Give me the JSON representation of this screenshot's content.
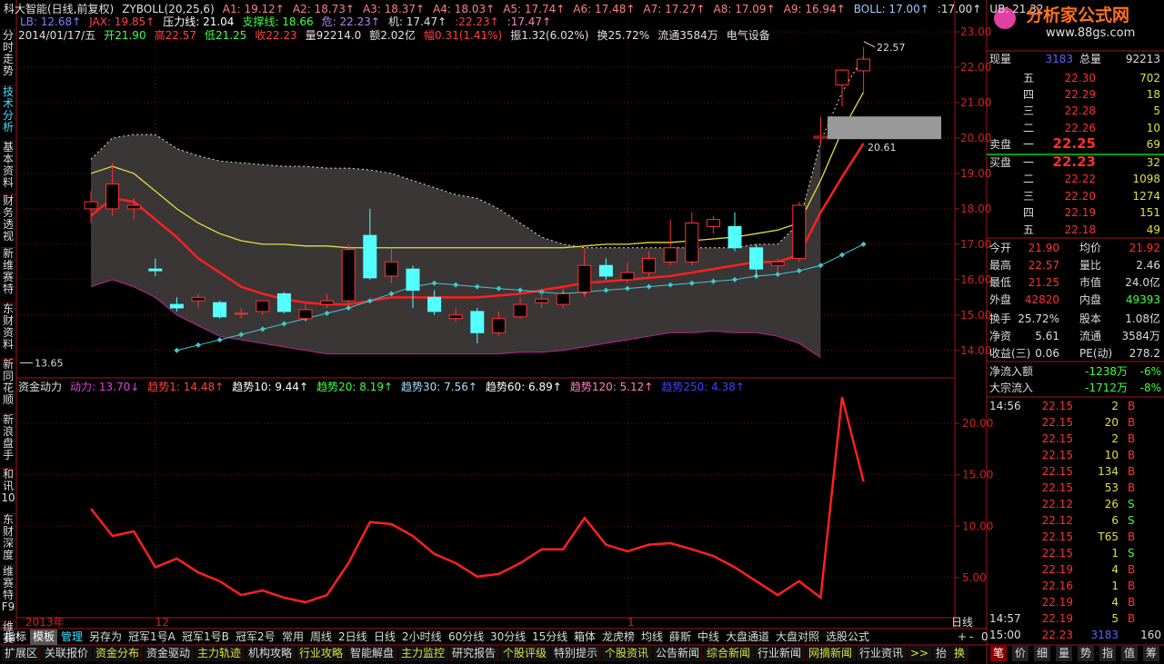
{
  "sidebar": {
    "tabs": [
      "分时走势",
      "技术分析",
      "基本资料",
      "财务透视",
      "新维赛特",
      "东财资料",
      "新同花顺",
      "新浪盘手",
      "和讯10",
      "东财深度",
      "维赛特F9",
      "维赛"
    ],
    "active": 1
  },
  "header": {
    "line1": [
      {
        "text": "科大智能(日线,前复权)",
        "color": "#e0e0e0"
      },
      {
        "text": "ZYBOLL(20,25,6)",
        "color": "#e0e0e0"
      },
      {
        "text": "A1: 19.12↑",
        "color": "#ff8080"
      },
      {
        "text": "A2: 18.73↑",
        "color": "#ff8080"
      },
      {
        "text": "A3: 18.37↑",
        "color": "#ff8080"
      },
      {
        "text": "A4: 18.03↑",
        "color": "#ff8080"
      },
      {
        "text": "A5: 17.74↑",
        "color": "#ff8080"
      },
      {
        "text": "A6: 17.48↑",
        "color": "#ff8080"
      },
      {
        "text": "A7: 17.27↑",
        "color": "#ff8080"
      },
      {
        "text": "A8: 17.09↑",
        "color": "#ff8080"
      },
      {
        "text": "A9: 16.94↑",
        "color": "#ff8080"
      },
      {
        "text": "BOLL: 17.00↑",
        "color": "#a0c8ff"
      },
      {
        "text": ":17.00↑",
        "color": "#e0e0e0"
      },
      {
        "text": "UB: 21.32",
        "color": "#e0e0e0"
      }
    ],
    "line2": [
      {
        "text": "LB: 12.68↑",
        "color": "#8080ff"
      },
      {
        "text": "JAX: 19.85↑",
        "color": "#ff4040"
      },
      {
        "text": "压力线: 21.04",
        "color": "#ffffff"
      },
      {
        "text": "支撑线: 18.66",
        "color": "#40ff40"
      },
      {
        "text": "危: 22.23↑",
        "color": "#c080ff"
      },
      {
        "text": "机: 17.47↑",
        "color": "#e0e0e0"
      },
      {
        "text": ":22.23↑",
        "color": "#ff4040"
      },
      {
        "text": ":17.47↑",
        "color": "#ff80c0"
      }
    ],
    "line3": [
      {
        "text": "2014/01/17/五",
        "color": "#e0e0e0"
      },
      {
        "text": "开21.90",
        "color": "#40ff40"
      },
      {
        "text": "高22.57",
        "color": "#ff4040"
      },
      {
        "text": "低21.25",
        "color": "#40ff40"
      },
      {
        "text": "收22.23",
        "color": "#ff4040"
      },
      {
        "text": "量92214.0",
        "color": "#e0e0e0"
      },
      {
        "text": "额2.02亿",
        "color": "#e0e0e0"
      },
      {
        "text": "幅0.31(1.41%)",
        "color": "#ff4040"
      },
      {
        "text": "振1.32(6.02%)",
        "color": "#e0e0e0"
      },
      {
        "text": "换25.72%",
        "color": "#e0e0e0"
      },
      {
        "text": "流通3584万",
        "color": "#e0e0e0"
      },
      {
        "text": "电气设备",
        "color": "#e0e0e0"
      }
    ]
  },
  "chart_data": [
    {
      "type": "candlestick",
      "ylim": [
        13.25,
        23.9
      ],
      "yticks": [
        {
          "value": 14,
          "label": "14.00"
        },
        {
          "value": 15,
          "label": "15.00"
        },
        {
          "value": 16,
          "label": "16.00"
        },
        {
          "value": 17,
          "label": "17.00"
        },
        {
          "value": 18,
          "label": "18.00"
        },
        {
          "value": 19,
          "label": "19.00"
        },
        {
          "value": 20,
          "label": "20.00"
        },
        {
          "value": 21,
          "label": "21.00"
        },
        {
          "value": 22,
          "label": "22.00"
        },
        {
          "value": 23,
          "label": "23.00"
        }
      ],
      "categories": [
        null,
        null,
        null,
        "12",
        null,
        null,
        null,
        null,
        null,
        null,
        null,
        null,
        null,
        null,
        null,
        null,
        null,
        null,
        null,
        null,
        null,
        null,
        null,
        null,
        null,
        "1",
        null,
        null,
        null,
        null,
        null,
        null,
        null,
        null,
        null,
        null,
        null
      ],
      "year_label": "2013年",
      "open": [
        18.0,
        18.0,
        18.0,
        16.3,
        15.3,
        15.4,
        15.35,
        15.05,
        15.1,
        15.6,
        14.9,
        15.3,
        15.4,
        17.25,
        16.1,
        16.3,
        15.5,
        14.9,
        15.1,
        14.5,
        14.95,
        15.35,
        15.3,
        15.65,
        16.4,
        16.0,
        16.2,
        16.5,
        16.5,
        17.5,
        17.5,
        16.9,
        16.4,
        16.6,
        20.0,
        21.5,
        21.9
      ],
      "high": [
        18.5,
        19.3,
        18.3,
        16.6,
        15.5,
        15.6,
        15.4,
        15.2,
        15.4,
        15.65,
        15.3,
        15.6,
        17.0,
        18.0,
        16.9,
        16.4,
        15.7,
        15.2,
        15.2,
        15.1,
        15.5,
        15.7,
        15.8,
        16.9,
        16.6,
        16.5,
        16.8,
        17.7,
        17.9,
        17.8,
        17.9,
        17.0,
        16.6,
        18.2,
        20.6,
        21.95,
        22.57
      ],
      "low": [
        17.6,
        17.8,
        17.7,
        16.1,
        15.1,
        15.2,
        14.9,
        14.9,
        15.0,
        15.05,
        14.85,
        15.2,
        15.3,
        16.0,
        15.9,
        15.2,
        15.0,
        14.8,
        14.2,
        14.4,
        14.9,
        15.2,
        15.2,
        15.5,
        16.0,
        15.9,
        16.1,
        16.4,
        16.4,
        17.3,
        16.8,
        16.1,
        16.2,
        16.5,
        19.8,
        20.9,
        21.25
      ],
      "close": [
        18.2,
        18.7,
        18.1,
        16.25,
        15.2,
        15.5,
        14.95,
        15.05,
        15.4,
        15.1,
        15.15,
        15.4,
        16.85,
        16.05,
        16.5,
        15.7,
        15.1,
        15.0,
        14.5,
        14.9,
        15.3,
        15.45,
        15.6,
        16.4,
        16.1,
        16.2,
        16.6,
        16.9,
        17.6,
        17.7,
        16.9,
        16.3,
        16.5,
        18.1,
        20.05,
        21.92,
        22.23
      ],
      "up_color": "#ff3232",
      "down_color": "#54ffff",
      "band": {
        "color": "#3a3636",
        "upper": [
          19.4,
          20.0,
          20.1,
          20.1,
          19.7,
          19.5,
          19.35,
          19.3,
          19.25,
          19.2,
          19.2,
          19.15,
          19.15,
          19.1,
          19.0,
          18.8,
          18.6,
          18.4,
          18.3,
          18.0,
          17.6,
          17.2,
          17.0,
          16.9,
          16.9,
          16.9,
          16.9,
          16.9,
          16.9,
          16.9,
          16.9,
          17.0,
          17.0,
          17.6,
          19.9,
          21.3,
          22.3
        ],
        "lower": [
          15.8,
          16.0,
          15.8,
          15.5,
          15.0,
          14.7,
          14.4,
          14.3,
          14.2,
          14.1,
          14.0,
          13.9,
          13.9,
          13.9,
          13.9,
          13.9,
          13.9,
          13.9,
          13.9,
          13.9,
          13.95,
          13.95,
          14.0,
          14.1,
          14.2,
          14.3,
          14.4,
          14.5,
          14.5,
          14.55,
          14.5,
          14.5,
          14.4,
          14.2,
          13.8,
          null,
          null
        ]
      },
      "series": [
        {
          "color": "#e0e040",
          "width": 1.3,
          "values": [
            19.0,
            19.2,
            19.0,
            18.5,
            18.0,
            17.6,
            17.3,
            17.1,
            17.0,
            17.0,
            16.95,
            16.95,
            16.9,
            16.9,
            16.9,
            16.9,
            16.9,
            16.9,
            16.9,
            16.9,
            16.9,
            16.9,
            16.9,
            16.95,
            17.0,
            17.0,
            17.05,
            17.05,
            17.1,
            17.15,
            17.2,
            17.3,
            17.4,
            17.6,
            18.8,
            20.2,
            21.3
          ]
        },
        {
          "color": "#ff2020",
          "width": 2.5,
          "values": [
            17.8,
            18.3,
            18.2,
            17.7,
            17.2,
            16.6,
            16.2,
            15.8,
            15.6,
            15.45,
            15.35,
            15.3,
            15.3,
            15.4,
            15.5,
            15.5,
            15.5,
            15.5,
            15.5,
            15.55,
            15.6,
            15.7,
            15.8,
            15.9,
            15.95,
            16.0,
            16.05,
            16.1,
            16.2,
            16.3,
            16.4,
            16.5,
            16.5,
            16.7,
            17.9,
            18.9,
            19.85
          ]
        },
        {
          "color": "#40c8d0",
          "width": 1,
          "marker": "diamond",
          "values": [
            null,
            null,
            null,
            null,
            14.0,
            14.15,
            14.3,
            14.45,
            14.6,
            14.75,
            14.9,
            15.05,
            15.2,
            15.4,
            15.6,
            15.8,
            15.9,
            15.85,
            15.8,
            15.75,
            15.7,
            15.65,
            15.6,
            15.65,
            15.7,
            15.75,
            15.8,
            15.85,
            15.9,
            15.95,
            16.0,
            16.1,
            16.15,
            16.25,
            16.4,
            16.7,
            17.0
          ]
        }
      ],
      "low_mark": 13.65,
      "high_mark": 22.57,
      "box_mark": 20.61
    },
    {
      "type": "line",
      "legend": [
        {
          "text": "资金动力",
          "color": "#e0e0e0"
        },
        {
          "text": "动力: 13.70↓",
          "color": "#e040e0"
        },
        {
          "text": "趋势1: 14.48↑",
          "color": "#ff4040"
        },
        {
          "text": "趋势10: 9.44↑",
          "color": "#ffffff"
        },
        {
          "text": "趋势20: 8.19↑",
          "color": "#40ff40"
        },
        {
          "text": "趋势30: 7.56↑",
          "color": "#a0e0ff"
        },
        {
          "text": "趋势60: 6.89↑",
          "color": "#ffffff"
        },
        {
          "text": "趋势120: 5.12↑",
          "color": "#ff80c0"
        },
        {
          "text": "趋势250: 4.38↑",
          "color": "#4040ff"
        }
      ],
      "ylim": [
        1.1,
        24.25
      ],
      "yticks": [
        {
          "value": 5,
          "label": "5.00"
        },
        {
          "value": 10,
          "label": "10.00"
        },
        {
          "value": 15,
          "label": "15.00"
        },
        {
          "value": 20,
          "label": "20.00"
        }
      ],
      "series": [
        {
          "color": "#ff2020",
          "values": [
            11.7,
            9.05,
            9.5,
            6.0,
            6.85,
            5.5,
            4.65,
            3.3,
            3.75,
            3.05,
            2.6,
            3.3,
            6.4,
            10.4,
            10.2,
            9.05,
            7.3,
            6.4,
            5.1,
            5.35,
            6.4,
            7.75,
            7.75,
            10.8,
            8.2,
            7.55,
            8.2,
            8.35,
            7.75,
            7.1,
            6.0,
            4.65,
            3.3,
            4.65,
            3.05,
            22.55,
            14.35
          ]
        }
      ],
      "x_period": "日线"
    }
  ],
  "quote": {
    "top": [
      "现量",
      "3183",
      "总量",
      "92213"
    ],
    "sell_label": "卖盘",
    "buy_label": "买盘",
    "sell": [
      [
        "五",
        "22.30",
        "702"
      ],
      [
        "四",
        "22.29",
        "18"
      ],
      [
        "三",
        "22.28",
        "5"
      ],
      [
        "二",
        "22.26",
        "10"
      ],
      [
        "一",
        "22.25",
        "69"
      ]
    ],
    "buy": [
      [
        "一",
        "22.23",
        "32"
      ],
      [
        "二",
        "22.22",
        "1098"
      ],
      [
        "三",
        "22.20",
        "1274"
      ],
      [
        "四",
        "22.19",
        "151"
      ],
      [
        "五",
        "22.18",
        "49"
      ]
    ],
    "stats": [
      [
        "今开",
        "21.90",
        "均价",
        "21.92"
      ],
      [
        "最高",
        "22.57",
        "量比",
        "2.46"
      ],
      [
        "最低",
        "21.25",
        "市值",
        "24.0亿"
      ],
      [
        "外盘",
        "42820",
        "内盘",
        "49393"
      ],
      [
        "换手",
        "25.72%",
        "股本",
        "1.08亿"
      ],
      [
        "净资",
        "5.61",
        "流通",
        "3584万"
      ],
      [
        "收益(三)",
        "0.06",
        "PE(动)",
        "278.2"
      ]
    ],
    "flow": [
      [
        "净流入额",
        "-1238万",
        "-6%"
      ],
      [
        "大宗流入",
        "-1712万",
        "-8%"
      ]
    ],
    "trades": [
      [
        "14:56",
        "22.15",
        "2",
        "B"
      ],
      [
        "",
        "22.15",
        "20",
        "B"
      ],
      [
        "",
        "22.15",
        "2",
        "B"
      ],
      [
        "",
        "22.15",
        "10",
        "B"
      ],
      [
        "",
        "22.15",
        "134",
        "B"
      ],
      [
        "",
        "22.15",
        "53",
        "B"
      ],
      [
        "",
        "22.12",
        "26",
        "S"
      ],
      [
        "",
        "22.12",
        "6",
        "S"
      ],
      [
        "",
        "22.15",
        "T65",
        "B"
      ],
      [
        "",
        "22.15",
        "1",
        "S"
      ],
      [
        "",
        "22.19",
        "4",
        "B"
      ],
      [
        "",
        "22.16",
        "1",
        "B"
      ],
      [
        "",
        "22.19",
        "4",
        "B"
      ],
      [
        "14:57",
        "22.19",
        "5",
        "B"
      ],
      [
        "15:00",
        "22.23",
        "3183",
        "160"
      ]
    ],
    "tabs": [
      "笔",
      "价",
      "细",
      "量",
      "势",
      "指",
      "值",
      "筹"
    ]
  },
  "logo": {
    "name": "分析家公式网",
    "url": "www.88gs.com"
  },
  "toolbar": {
    "row1": [
      "指标",
      "模板",
      "管理",
      "另存为",
      "冠军1号A",
      "冠军1号B",
      "冠军2号",
      "常用",
      "周线",
      "2日线",
      "日线",
      "2小时线",
      "60分线",
      "30分线",
      "15分线",
      "箱体",
      "龙虎榜",
      "均线",
      "薛斯",
      "中线",
      "大盘通道",
      "大盘对照",
      "选股公式"
    ],
    "zoom": [
      "+",
      "-",
      "0"
    ],
    "row2": [
      "扩展区",
      "关联报价",
      "资金分布",
      "资金驱动",
      "主力轨迹",
      "机构攻略",
      "行业攻略",
      "智能解盘",
      "主力监控",
      "研究报告",
      "个股评级",
      "特别提示",
      "个股资讯",
      "公告新闻",
      "综合新闻",
      "行业新闻",
      "网摘新闻",
      "行业资讯",
      ">>",
      "抬",
      "换"
    ]
  }
}
